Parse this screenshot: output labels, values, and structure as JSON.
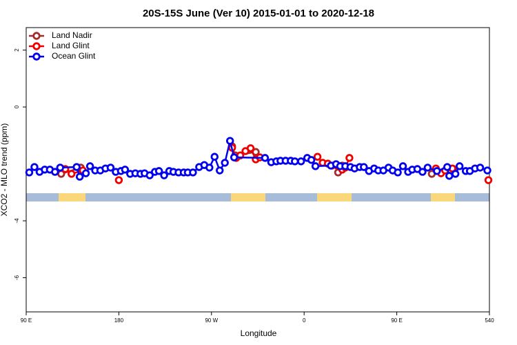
{
  "chart_data": {
    "type": "line",
    "title": "20S-15S June (Ver 10)   2015-01-01 to 2020-12-18",
    "x_label": "Longitude",
    "y_label": "XCO2 - MLO trend (ppm)",
    "xlim": [
      90,
      540
    ],
    "xticks": [
      {
        "value": 90,
        "label": "90 E"
      },
      180,
      {
        "value": 270,
        "label": "90 W"
      },
      {
        "value": 360,
        "label": "0"
      },
      {
        "value": 450,
        "label": "90 E"
      },
      540
    ],
    "ylim": [
      -7.2,
      2.79
    ],
    "yticks": [
      2,
      0,
      -4,
      -6
    ],
    "legend": "top-left",
    "series": [
      {
        "name": "Land Nadir",
        "color": "#a52a2a",
        "x": [
          124,
          143,
          null,
          290,
          293,
          313,
          null,
          393,
          397,
          null,
          484,
          505
        ],
        "values": [
          -2.35,
          -2.13,
          null,
          -1.38,
          -1.7,
          -1.58,
          null,
          -2.3,
          -2.06,
          null,
          -2.35,
          -2.18
        ]
      },
      {
        "name": "Land Glint",
        "color": "#ee0000",
        "x": [
          128,
          134,
          145,
          null,
          180,
          null,
          290,
          294,
          298,
          303,
          308,
          313,
          317,
          null,
          373,
          378,
          383,
          387,
          392,
          397,
          400,
          404,
          null,
          488,
          493,
          497,
          504,
          null,
          539
        ],
        "values": [
          -2.18,
          -2.35,
          -2.23,
          null,
          -2.57,
          null,
          -1.43,
          -1.79,
          -1.7,
          -1.55,
          -1.45,
          -1.84,
          -1.77,
          null,
          -1.75,
          -1.96,
          -1.99,
          -2.06,
          -2.06,
          -2.2,
          -2.13,
          -1.79,
          null,
          -2.16,
          -2.33,
          -2.23,
          -2.16,
          null,
          -2.57
        ]
      },
      {
        "name": "Ocean Glint",
        "color": "#0000ee",
        "x": [
          93,
          98,
          103,
          108,
          113,
          118,
          123,
          139,
          142,
          148,
          152,
          157,
          162,
          167,
          172,
          177,
          182,
          186,
          191,
          196,
          201,
          205,
          210,
          215,
          219,
          224,
          229,
          233,
          238,
          243,
          247,
          252,
          258,
          263,
          268,
          273,
          278,
          283,
          288,
          292,
          322,
          328,
          333,
          337,
          342,
          347,
          351,
          357,
          363,
          367,
          371,
          386,
          391,
          395,
          400,
          405,
          409,
          414,
          418,
          423,
          428,
          432,
          437,
          442,
          446,
          451,
          456,
          461,
          465,
          470,
          475,
          480,
          489,
          499,
          501,
          507,
          511,
          517,
          521,
          526,
          531,
          538
        ],
        "values": [
          -2.3,
          -2.11,
          -2.28,
          -2.2,
          -2.2,
          -2.28,
          -2.13,
          -2.11,
          -2.45,
          -2.33,
          -2.08,
          -2.23,
          -2.23,
          -2.16,
          -2.13,
          -2.28,
          -2.25,
          -2.2,
          -2.35,
          -2.33,
          -2.35,
          -2.33,
          -2.4,
          -2.28,
          -2.25,
          -2.4,
          -2.25,
          -2.28,
          -2.3,
          -2.3,
          -2.3,
          -2.3,
          -2.11,
          -2.04,
          -2.13,
          -1.75,
          -2.23,
          -1.96,
          -1.19,
          -1.77,
          -1.79,
          -1.94,
          -1.91,
          -1.89,
          -1.89,
          -1.89,
          -1.91,
          -1.91,
          -1.79,
          -1.86,
          -2.08,
          -2.06,
          -2.01,
          -2.08,
          -2.08,
          -2.11,
          -2.16,
          -2.11,
          -2.11,
          -2.25,
          -2.16,
          -2.23,
          -2.23,
          -2.13,
          -2.23,
          -2.3,
          -2.08,
          -2.28,
          -2.2,
          -2.18,
          -2.28,
          -2.13,
          -2.25,
          -2.11,
          -2.42,
          -2.35,
          -2.08,
          -2.25,
          -2.25,
          -2.16,
          -2.13,
          -2.23
        ]
      }
    ]
  }
}
